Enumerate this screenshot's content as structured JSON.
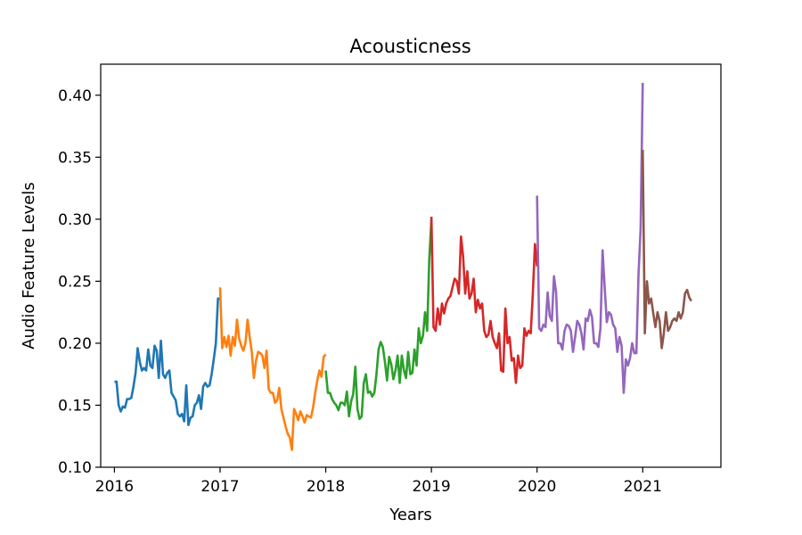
{
  "chart_data": {
    "type": "line",
    "title": "Acousticness",
    "xlabel": "Years",
    "ylabel": "Audio Feature Levels",
    "xlim": [
      2015.87,
      2021.74
    ],
    "ylim": [
      0.1,
      0.425
    ],
    "xticks": [
      2016,
      2017,
      2018,
      2019,
      2020,
      2021
    ],
    "yticks": [
      0.1,
      0.15,
      0.2,
      0.25,
      0.3,
      0.35,
      0.4
    ],
    "ytick_labels": [
      "0.10",
      "0.15",
      "0.20",
      "0.25",
      "0.30",
      "0.35",
      "0.40"
    ],
    "grid": false,
    "legend": "none",
    "series": [
      {
        "color": "#1f77b4",
        "x": [
          2016.0,
          2016.02,
          2016.04,
          2016.06,
          2016.08,
          2016.1,
          2016.12,
          2016.14,
          2016.16,
          2016.18,
          2016.2,
          2016.22,
          2016.24,
          2016.26,
          2016.28,
          2016.3,
          2016.32,
          2016.34,
          2016.36,
          2016.38,
          2016.4,
          2016.42,
          2016.44,
          2016.46,
          2016.48,
          2016.5,
          2016.52,
          2016.54,
          2016.56,
          2016.58,
          2016.6,
          2016.62,
          2016.64,
          2016.66,
          2016.68,
          2016.7,
          2016.72,
          2016.74,
          2016.76,
          2016.78,
          2016.8,
          2016.82,
          2016.84,
          2016.86,
          2016.88,
          2016.9,
          2016.92,
          2016.94,
          2016.96,
          2016.98,
          2017.0
        ],
        "y": [
          0.169,
          0.169,
          0.15,
          0.145,
          0.149,
          0.148,
          0.155,
          0.155,
          0.156,
          0.165,
          0.176,
          0.196,
          0.185,
          0.178,
          0.18,
          0.178,
          0.195,
          0.182,
          0.18,
          0.198,
          0.194,
          0.172,
          0.202,
          0.175,
          0.172,
          0.176,
          0.178,
          0.16,
          0.157,
          0.154,
          0.143,
          0.141,
          0.143,
          0.137,
          0.166,
          0.134,
          0.14,
          0.141,
          0.15,
          0.152,
          0.158,
          0.147,
          0.165,
          0.168,
          0.165,
          0.166,
          0.175,
          0.187,
          0.2,
          0.236,
          0.236
        ]
      },
      {
        "color": "#ff7f0e",
        "x": [
          2017.0,
          2017.02,
          2017.04,
          2017.06,
          2017.08,
          2017.1,
          2017.12,
          2017.14,
          2017.16,
          2017.18,
          2017.2,
          2017.22,
          2017.24,
          2017.26,
          2017.28,
          2017.3,
          2017.32,
          2017.34,
          2017.36,
          2017.38,
          2017.4,
          2017.42,
          2017.44,
          2017.46,
          2017.48,
          2017.5,
          2017.52,
          2017.54,
          2017.56,
          2017.58,
          2017.6,
          2017.62,
          2017.64,
          2017.66,
          2017.68,
          2017.7,
          2017.72,
          2017.74,
          2017.76,
          2017.78,
          2017.8,
          2017.82,
          2017.84,
          2017.86,
          2017.88,
          2017.9,
          2017.92,
          2017.94,
          2017.96,
          2017.98,
          2018.0
        ],
        "y": [
          0.245,
          0.196,
          0.205,
          0.197,
          0.206,
          0.19,
          0.205,
          0.198,
          0.219,
          0.204,
          0.198,
          0.194,
          0.2,
          0.219,
          0.205,
          0.193,
          0.172,
          0.186,
          0.193,
          0.192,
          0.19,
          0.18,
          0.194,
          0.163,
          0.16,
          0.16,
          0.152,
          0.154,
          0.164,
          0.147,
          0.14,
          0.133,
          0.127,
          0.124,
          0.114,
          0.147,
          0.143,
          0.138,
          0.145,
          0.141,
          0.136,
          0.142,
          0.141,
          0.14,
          0.148,
          0.16,
          0.17,
          0.178,
          0.173,
          0.189,
          0.191
        ]
      },
      {
        "color": "#2ca02c",
        "x": [
          2018.0,
          2018.02,
          2018.04,
          2018.06,
          2018.08,
          2018.1,
          2018.12,
          2018.14,
          2018.16,
          2018.18,
          2018.2,
          2018.22,
          2018.24,
          2018.26,
          2018.28,
          2018.3,
          2018.32,
          2018.34,
          2018.36,
          2018.38,
          2018.4,
          2018.42,
          2018.44,
          2018.46,
          2018.48,
          2018.5,
          2018.52,
          2018.54,
          2018.56,
          2018.58,
          2018.6,
          2018.62,
          2018.64,
          2018.66,
          2018.68,
          2018.7,
          2018.72,
          2018.74,
          2018.76,
          2018.78,
          2018.8,
          2018.82,
          2018.84,
          2018.86,
          2018.88,
          2018.9,
          2018.92,
          2018.94,
          2018.96,
          2018.98,
          2019.0
        ],
        "y": [
          0.178,
          0.16,
          0.16,
          0.155,
          0.152,
          0.15,
          0.146,
          0.152,
          0.152,
          0.15,
          0.161,
          0.141,
          0.153,
          0.159,
          0.181,
          0.147,
          0.139,
          0.141,
          0.168,
          0.175,
          0.16,
          0.161,
          0.157,
          0.16,
          0.175,
          0.195,
          0.201,
          0.197,
          0.185,
          0.17,
          0.189,
          0.183,
          0.171,
          0.178,
          0.19,
          0.168,
          0.19,
          0.178,
          0.172,
          0.193,
          0.175,
          0.176,
          0.195,
          0.182,
          0.212,
          0.2,
          0.206,
          0.225,
          0.21,
          0.268,
          0.3
        ]
      },
      {
        "color": "#d62728",
        "x": [
          2019.0,
          2019.02,
          2019.04,
          2019.06,
          2019.08,
          2019.1,
          2019.12,
          2019.14,
          2019.16,
          2019.18,
          2019.2,
          2019.22,
          2019.24,
          2019.26,
          2019.28,
          2019.3,
          2019.32,
          2019.34,
          2019.36,
          2019.38,
          2019.4,
          2019.42,
          2019.44,
          2019.46,
          2019.48,
          2019.5,
          2019.52,
          2019.54,
          2019.56,
          2019.58,
          2019.6,
          2019.62,
          2019.64,
          2019.66,
          2019.68,
          2019.7,
          2019.72,
          2019.74,
          2019.76,
          2019.78,
          2019.8,
          2019.82,
          2019.84,
          2019.86,
          2019.88,
          2019.9,
          2019.92,
          2019.94,
          2019.96,
          2019.98,
          2020.0
        ],
        "y": [
          0.302,
          0.213,
          0.21,
          0.228,
          0.215,
          0.232,
          0.224,
          0.232,
          0.236,
          0.238,
          0.245,
          0.252,
          0.25,
          0.24,
          0.286,
          0.27,
          0.24,
          0.258,
          0.236,
          0.24,
          0.252,
          0.225,
          0.235,
          0.228,
          0.232,
          0.21,
          0.205,
          0.207,
          0.218,
          0.205,
          0.2,
          0.196,
          0.208,
          0.178,
          0.177,
          0.228,
          0.2,
          0.205,
          0.186,
          0.188,
          0.168,
          0.19,
          0.18,
          0.182,
          0.212,
          0.206,
          0.21,
          0.208,
          0.24,
          0.28,
          0.262
        ]
      },
      {
        "color": "#9467bd",
        "x": [
          2020.0,
          2020.02,
          2020.04,
          2020.06,
          2020.08,
          2020.1,
          2020.12,
          2020.14,
          2020.16,
          2020.18,
          2020.2,
          2020.22,
          2020.24,
          2020.26,
          2020.28,
          2020.3,
          2020.32,
          2020.34,
          2020.36,
          2020.38,
          2020.4,
          2020.42,
          2020.44,
          2020.46,
          2020.48,
          2020.5,
          2020.52,
          2020.54,
          2020.56,
          2020.58,
          2020.6,
          2020.62,
          2020.64,
          2020.66,
          2020.68,
          2020.7,
          2020.72,
          2020.74,
          2020.76,
          2020.78,
          2020.8,
          2020.82,
          2020.84,
          2020.86,
          2020.88,
          2020.9,
          2020.92,
          2020.94,
          2020.96,
          2020.98,
          2021.0
        ],
        "y": [
          0.319,
          0.212,
          0.21,
          0.215,
          0.213,
          0.241,
          0.222,
          0.218,
          0.254,
          0.241,
          0.2,
          0.2,
          0.195,
          0.21,
          0.215,
          0.214,
          0.21,
          0.193,
          0.205,
          0.218,
          0.215,
          0.208,
          0.195,
          0.22,
          0.218,
          0.227,
          0.221,
          0.2,
          0.2,
          0.197,
          0.212,
          0.275,
          0.245,
          0.217,
          0.225,
          0.223,
          0.215,
          0.212,
          0.193,
          0.205,
          0.198,
          0.16,
          0.187,
          0.182,
          0.188,
          0.2,
          0.192,
          0.192,
          0.255,
          0.292,
          0.41
        ]
      },
      {
        "color": "#8c564b",
        "x": [
          2021.0,
          2021.02,
          2021.04,
          2021.06,
          2021.08,
          2021.1,
          2021.12,
          2021.14,
          2021.16,
          2021.18,
          2021.2,
          2021.22,
          2021.24,
          2021.26,
          2021.28,
          2021.3,
          2021.32,
          2021.34,
          2021.36,
          2021.38,
          2021.4,
          2021.42,
          2021.44,
          2021.46
        ],
        "y": [
          0.356,
          0.208,
          0.25,
          0.232,
          0.236,
          0.224,
          0.213,
          0.225,
          0.218,
          0.196,
          0.208,
          0.225,
          0.21,
          0.213,
          0.218,
          0.22,
          0.218,
          0.225,
          0.22,
          0.225,
          0.24,
          0.243,
          0.237,
          0.234
        ]
      }
    ]
  }
}
